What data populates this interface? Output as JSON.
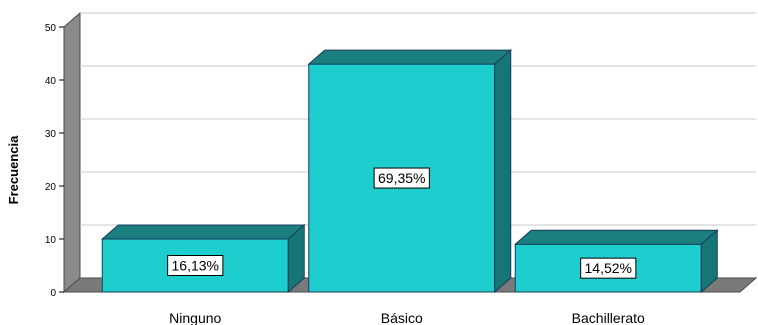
{
  "chart_data": {
    "type": "bar",
    "style": "3d",
    "categories": [
      "Ninguno",
      "Básico",
      "Bachillerato"
    ],
    "values": [
      10,
      43,
      9
    ],
    "data_labels": [
      "16,13%",
      "69,35%",
      "14,52%"
    ],
    "title": "",
    "xlabel": "",
    "ylabel": "Frecuencia",
    "ylim": [
      0,
      50
    ],
    "yticks": [
      0,
      10,
      20,
      30,
      40,
      50
    ],
    "grid": true,
    "legend": "none",
    "colors": {
      "bar_front": "#1ecdcd",
      "bar_top": "#1b7f7f",
      "bar_side": "#167676",
      "bar_edge": "#1a3c5a",
      "wall": "#8a8a8a",
      "wall_edge": "#4a4a4a",
      "floor": "#7a7a7a",
      "grid": "#c9c9c9"
    }
  }
}
